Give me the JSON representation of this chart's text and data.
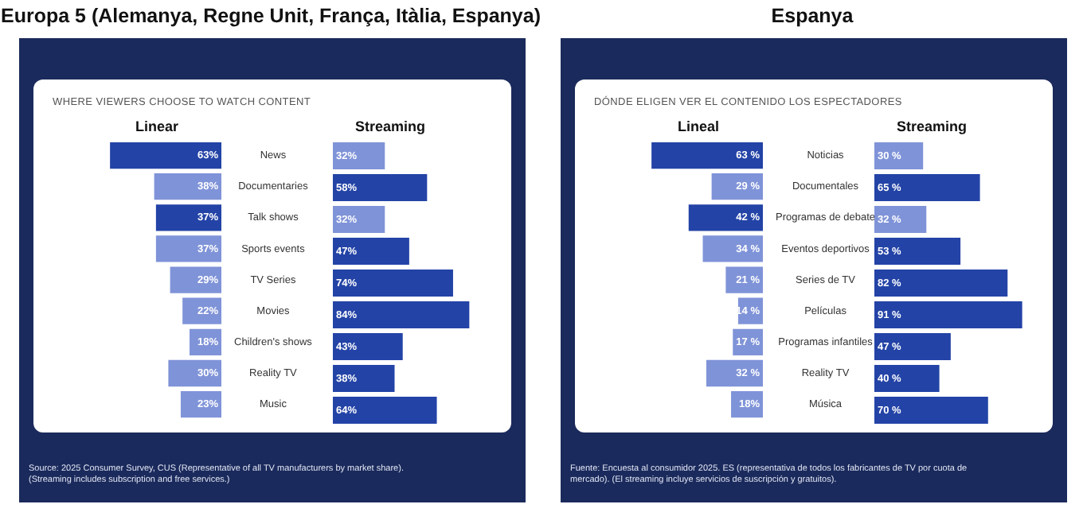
{
  "chart_data": [
    {
      "type": "bar",
      "orientation": "horizontal",
      "title": "Europa 5 (Alemanya, Regne Unit, França, Itàlia, Espanya)",
      "subtitle": "WHERE VIEWERS CHOOSE TO WATCH CONTENT",
      "annotations": [
        "Source: 2025 Consumer Survey, CUS (Representative of all TV manufacturers by market share). (Streaming includes subscription and free services.)"
      ],
      "categories": [
        "News",
        "Documentaries",
        "Talk shows",
        "Sports events",
        "TV Series",
        "Movies",
        "Children's shows",
        "Reality TV",
        "Music"
      ],
      "tick_labels": "y",
      "series": [
        {
          "name": "Linear",
          "colors": [
            "#2343a6",
            "#7f93d8",
            "#2343a6",
            "#7f93d8",
            "#7f93d8",
            "#7f93d8",
            "#7f93d8",
            "#7f93d8",
            "#7f93d8"
          ],
          "values": [
            63,
            38,
            37,
            37,
            29,
            22,
            18,
            30,
            23
          ],
          "value_labels": [
            "63%",
            "38%",
            "37%",
            "37%",
            "29%",
            "22%",
            "18%",
            "30%",
            "23%"
          ]
        }
      ]
    },
    {
      "type": "bar",
      "orientation": "horizontal",
      "tick_labels": false,
      "series": [
        {
          "name": "Streaming",
          "colors": [
            "#7f93d8",
            "#2343a6",
            "#7f93d8",
            "#2343a6",
            "#2343a6",
            "#2343a6",
            "#2343a6",
            "#2343a6",
            "#2343a6"
          ],
          "values": [
            32,
            58,
            32,
            47,
            74,
            84,
            43,
            38,
            64
          ],
          "value_labels": [
            "32%",
            "58%",
            "32%",
            "47%",
            "74%",
            "84%",
            "43%",
            "38%",
            "64%"
          ]
        }
      ]
    },
    {
      "type": "bar",
      "orientation": "horizontal",
      "title": "Espanya",
      "subtitle": "DÓNDE ELIGEN VER EL CONTENIDO LOS ESPECTADORES",
      "annotations": [
        "Fuente: Encuesta al consumidor 2025. ES (representativa de todos los fabricantes de TV por cuota de mercado). (El streaming incluye servicios de suscripción y gratuitos)."
      ],
      "categories": [
        "Noticias",
        "Documentales",
        "Programas de debate",
        "Eventos deportivos",
        "Series de TV",
        "Películas",
        "Programas infantiles",
        "Reality TV",
        "Música"
      ],
      "tick_labels": "y",
      "series": [
        {
          "name": "Lineal",
          "colors": [
            "#2343a6",
            "#7f93d8",
            "#2343a6",
            "#7f93d8",
            "#7f93d8",
            "#7f93d8",
            "#7f93d8",
            "#7f93d8",
            "#7f93d8"
          ],
          "values": [
            63,
            29,
            42,
            34,
            21,
            14,
            17,
            32,
            18
          ],
          "value_labels": [
            "63 %",
            "29 %",
            "42 %",
            "34 %",
            "21 %",
            "14 %",
            "17 %",
            "32 %",
            "18%"
          ]
        }
      ]
    },
    {
      "type": "bar",
      "orientation": "horizontal",
      "tick_labels": false,
      "series": [
        {
          "name": "Streaming",
          "colors": [
            "#7f93d8",
            "#2343a6",
            "#7f93d8",
            "#2343a6",
            "#2343a6",
            "#2343a6",
            "#2343a6",
            "#2343a6",
            "#2343a6"
          ],
          "values": [
            30,
            65,
            32,
            53,
            82,
            91,
            47,
            40,
            70
          ],
          "value_labels": [
            "30 %",
            "65 %",
            "32 %",
            "53 %",
            "82 %",
            "91 %",
            "47 %",
            "40 %",
            "70 %"
          ]
        }
      ]
    }
  ]
}
